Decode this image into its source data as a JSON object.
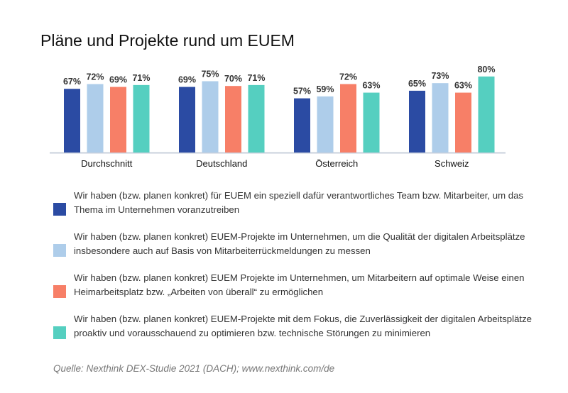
{
  "chart_data": {
    "type": "bar",
    "title": "Pläne und Projekte rund um EUEM",
    "categories": [
      "Durchschnitt",
      "Deutschland",
      "Österreich",
      "Schweiz"
    ],
    "series": [
      {
        "name": "Wir haben (bzw. planen konkret) für EUEM ein speziell dafür verantwortliches Team bzw. Mitarbeiter, um das Thema im Unternehmen voranzutreiben",
        "color": "#2b4ba3",
        "values": [
          67,
          69,
          57,
          65
        ]
      },
      {
        "name": "Wir haben (bzw. planen konkret) EUEM-Projekte im Unternehmen, um die Qualität der digitalen Arbeitsplätze insbesondere auch auf Basis von Mitarbeiterrückmeldungen zu messen",
        "color": "#aecdea",
        "values": [
          72,
          75,
          59,
          73
        ]
      },
      {
        "name": "Wir haben (bzw. planen konkret) EUEM Projekte im Unternehmen, um Mitarbeitern auf optimale Weise einen Heimarbeitsplatz bzw. „Arbeiten von überall“ zu ermöglichen",
        "color": "#f77f67",
        "values": [
          69,
          70,
          72,
          63
        ]
      },
      {
        "name": "Wir haben (bzw. planen konkret) EUEM-Projekte mit dem Fokus, die Zuverlässigkeit der digitalen Arbeitsplätze proaktiv und vorausschauend zu optimieren bzw. technische Störungen zu minimieren",
        "color": "#55cfc0",
        "values": [
          71,
          71,
          63,
          80
        ]
      }
    ],
    "value_suffix": "%",
    "ylim": [
      0,
      100
    ],
    "grid": false,
    "legend": "bottom"
  },
  "source": "Quelle: Nexthink DEX-Studie 2021 (DACH); www.nexthink.com/de"
}
